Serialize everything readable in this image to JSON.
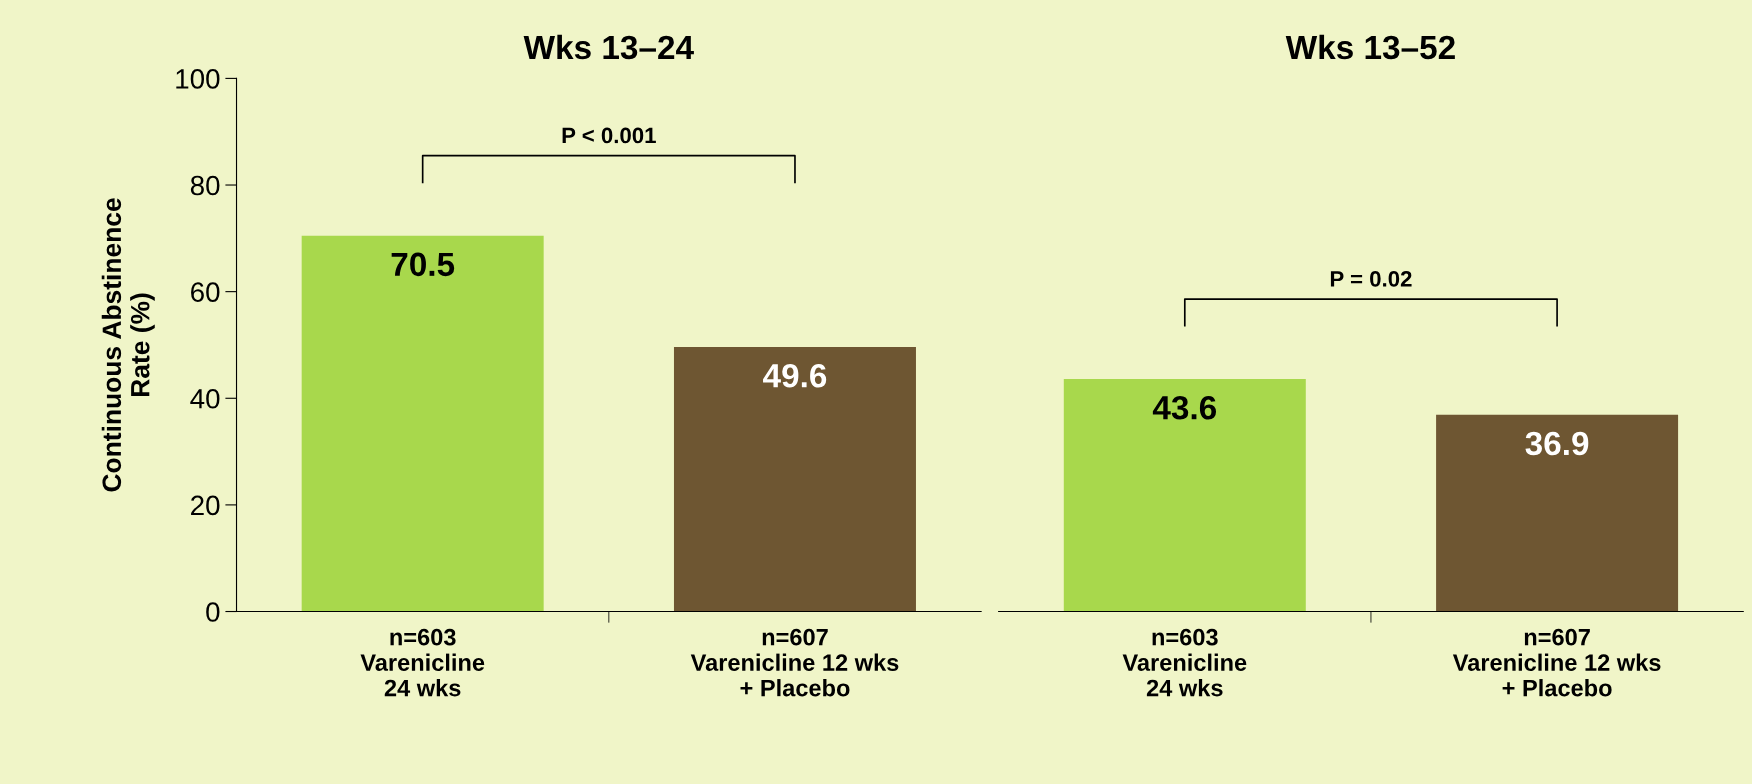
{
  "chart_data": [
    {
      "type": "bar",
      "title": "Wks 13–24",
      "ylabel": "Continuous Abstinence\nRate (%)",
      "categories": [
        "n=603\nVarenicline\n24 wks",
        "n=607\nVarenicline 12 wks\n+ Placebo"
      ],
      "values": [
        70.5,
        49.6
      ],
      "colors": [
        "#a8d84c",
        "#6e5632"
      ],
      "ylim": [
        0,
        100
      ],
      "yticks": [
        0,
        20,
        40,
        60,
        80,
        100
      ],
      "data_labels": true,
      "annotations": [
        "P < 0.001"
      ]
    },
    {
      "type": "bar",
      "title": "Wks 13–52",
      "categories": [
        "n=603\nVarenicline\n24 wks",
        "n=607\nVarenicline 12 wks\n+ Placebo"
      ],
      "values": [
        43.6,
        36.9
      ],
      "colors": [
        "#a8d84c",
        "#6e5632"
      ],
      "ylim": [
        0,
        100
      ],
      "yticks": [
        0,
        20,
        40,
        60,
        80,
        100
      ],
      "tick_labels": "x",
      "data_labels": true,
      "annotations": [
        "P = 0.02"
      ]
    }
  ]
}
